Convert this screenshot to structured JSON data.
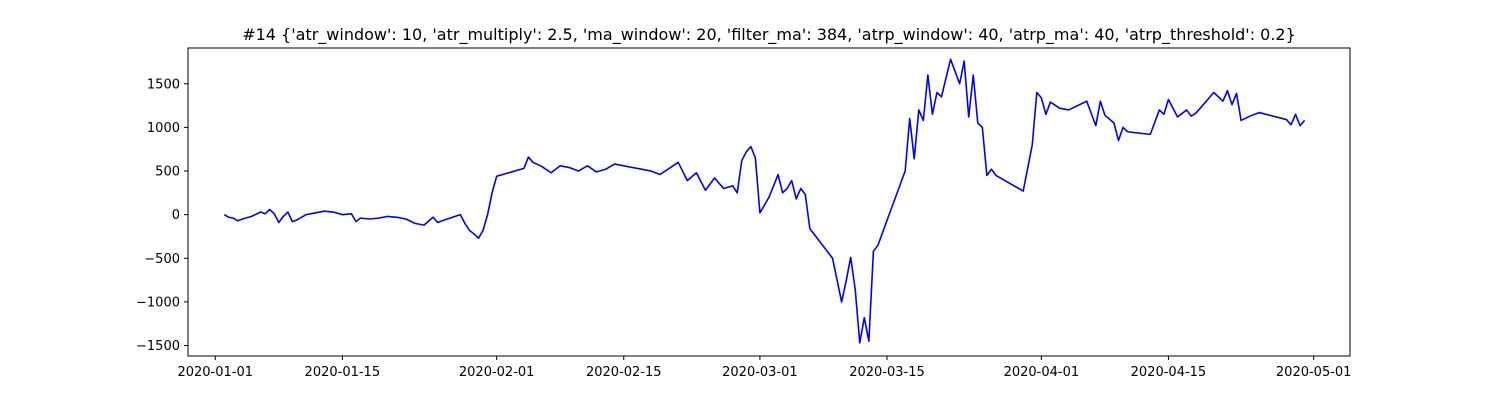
{
  "chart_data": {
    "type": "line",
    "title": "#14 {'atr_window': 10, 'atr_multiply': 2.5, 'ma_window': 20, 'filter_ma': 384, 'atrp_window': 40, 'atrp_ma': 40, 'atrp_threshold': 0.2}",
    "xlabel": "",
    "ylabel": "",
    "x_type": "date",
    "xlim": [
      "2019-12-29",
      "2020-05-05"
    ],
    "ylim": [
      -1620,
      1910
    ],
    "x_ticks": [
      "2020-01-01",
      "2020-01-15",
      "2020-02-01",
      "2020-02-15",
      "2020-03-01",
      "2020-03-15",
      "2020-04-01",
      "2020-04-15",
      "2020-05-01"
    ],
    "y_ticks": [
      -1500,
      -1000,
      -500,
      0,
      500,
      1000,
      1500
    ],
    "grid": false,
    "series": [
      {
        "color": "#0000ff",
        "x": [
          "2020-01-02",
          "2020-01-02T12",
          "2020-01-03",
          "2020-01-03T12",
          "2020-01-04",
          "2020-01-05",
          "2020-01-06",
          "2020-01-06T12",
          "2020-01-07",
          "2020-01-07T12",
          "2020-01-08",
          "2020-01-08T12",
          "2020-01-09",
          "2020-01-09T12",
          "2020-01-10",
          "2020-01-11",
          "2020-01-12",
          "2020-01-13",
          "2020-01-14",
          "2020-01-15",
          "2020-01-16",
          "2020-01-16T12",
          "2020-01-17",
          "2020-01-18",
          "2020-01-19",
          "2020-01-20",
          "2020-01-21",
          "2020-01-22",
          "2020-01-23",
          "2020-01-24",
          "2020-01-25",
          "2020-01-25T12",
          "2020-01-26",
          "2020-01-28",
          "2020-01-28T12",
          "2020-01-29",
          "2020-01-29T12",
          "2020-01-30",
          "2020-01-30T12",
          "2020-01-31",
          "2020-01-31T12",
          "2020-02-01",
          "2020-02-04",
          "2020-02-04T12",
          "2020-02-05",
          "2020-02-06",
          "2020-02-07",
          "2020-02-08",
          "2020-02-09",
          "2020-02-10",
          "2020-02-11",
          "2020-02-12",
          "2020-02-13",
          "2020-02-14",
          "2020-02-18",
          "2020-02-19",
          "2020-02-20",
          "2020-02-21",
          "2020-02-22",
          "2020-02-23",
          "2020-02-24",
          "2020-02-25",
          "2020-02-26",
          "2020-02-27",
          "2020-02-27T12",
          "2020-02-28",
          "2020-02-28T12",
          "2020-02-29",
          "2020-02-29T12",
          "2020-03-01",
          "2020-03-02",
          "2020-03-03",
          "2020-03-03T12",
          "2020-03-04",
          "2020-03-04T12",
          "2020-03-05",
          "2020-03-05T12",
          "2020-03-06",
          "2020-03-06T12",
          "2020-03-09",
          "2020-03-10",
          "2020-03-10T12",
          "2020-03-11",
          "2020-03-11T12",
          "2020-03-12",
          "2020-03-12T12",
          "2020-03-13",
          "2020-03-13T12",
          "2020-03-14",
          "2020-03-17",
          "2020-03-17T12",
          "2020-03-18",
          "2020-03-18T12",
          "2020-03-19",
          "2020-03-19T12",
          "2020-03-20",
          "2020-03-20T12",
          "2020-03-21",
          "2020-03-22",
          "2020-03-23",
          "2020-03-23T12",
          "2020-03-24",
          "2020-03-24T12",
          "2020-03-25",
          "2020-03-25T12",
          "2020-03-26",
          "2020-03-26T12",
          "2020-03-27",
          "2020-03-30",
          "2020-03-31",
          "2020-03-31T12",
          "2020-04-01",
          "2020-04-01T12",
          "2020-04-02",
          "2020-04-03",
          "2020-04-04",
          "2020-04-06",
          "2020-04-07",
          "2020-04-07T12",
          "2020-04-08",
          "2020-04-09",
          "2020-04-09T12",
          "2020-04-10",
          "2020-04-10T12",
          "2020-04-13",
          "2020-04-14",
          "2020-04-14T12",
          "2020-04-15",
          "2020-04-16",
          "2020-04-17",
          "2020-04-17T12",
          "2020-04-18",
          "2020-04-20",
          "2020-04-21",
          "2020-04-21T12",
          "2020-04-22",
          "2020-04-22T12",
          "2020-04-23",
          "2020-04-24",
          "2020-04-25",
          "2020-04-28",
          "2020-04-28T12",
          "2020-04-29",
          "2020-04-29T12",
          "2020-04-30"
        ],
        "y": [
          0,
          -30,
          -40,
          -70,
          -50,
          -20,
          30,
          10,
          60,
          10,
          -90,
          -20,
          30,
          -80,
          -60,
          0,
          20,
          40,
          30,
          0,
          10,
          -80,
          -40,
          -50,
          -40,
          -20,
          -30,
          -50,
          -100,
          -120,
          -30,
          -90,
          -70,
          0,
          -100,
          -180,
          -220,
          -270,
          -180,
          0,
          250,
          440,
          530,
          660,
          600,
          550,
          480,
          560,
          540,
          500,
          560,
          490,
          520,
          580,
          500,
          460,
          530,
          600,
          390,
          480,
          280,
          420,
          300,
          330,
          250,
          620,
          720,
          780,
          650,
          20,
          200,
          460,
          250,
          300,
          390,
          180,
          300,
          230,
          -160,
          -500,
          -1000,
          -760,
          -490,
          -860,
          -1470,
          -1180,
          -1450,
          -420,
          -350,
          500,
          1100,
          640,
          1200,
          1080,
          1600,
          1150,
          1400,
          1350,
          1780,
          1500,
          1760,
          1120,
          1600,
          1050,
          1000,
          450,
          520,
          450,
          270,
          800,
          1400,
          1340,
          1150,
          1290,
          1220,
          1200,
          1300,
          1020,
          1300,
          1140,
          1050,
          850,
          1000,
          950,
          920,
          1200,
          1150,
          1320,
          1120,
          1200,
          1130,
          1160,
          1400,
          1300,
          1420,
          1260,
          1390,
          1080,
          1130,
          1170,
          1090,
          1030,
          1150,
          1020,
          1080
        ]
      }
    ]
  }
}
